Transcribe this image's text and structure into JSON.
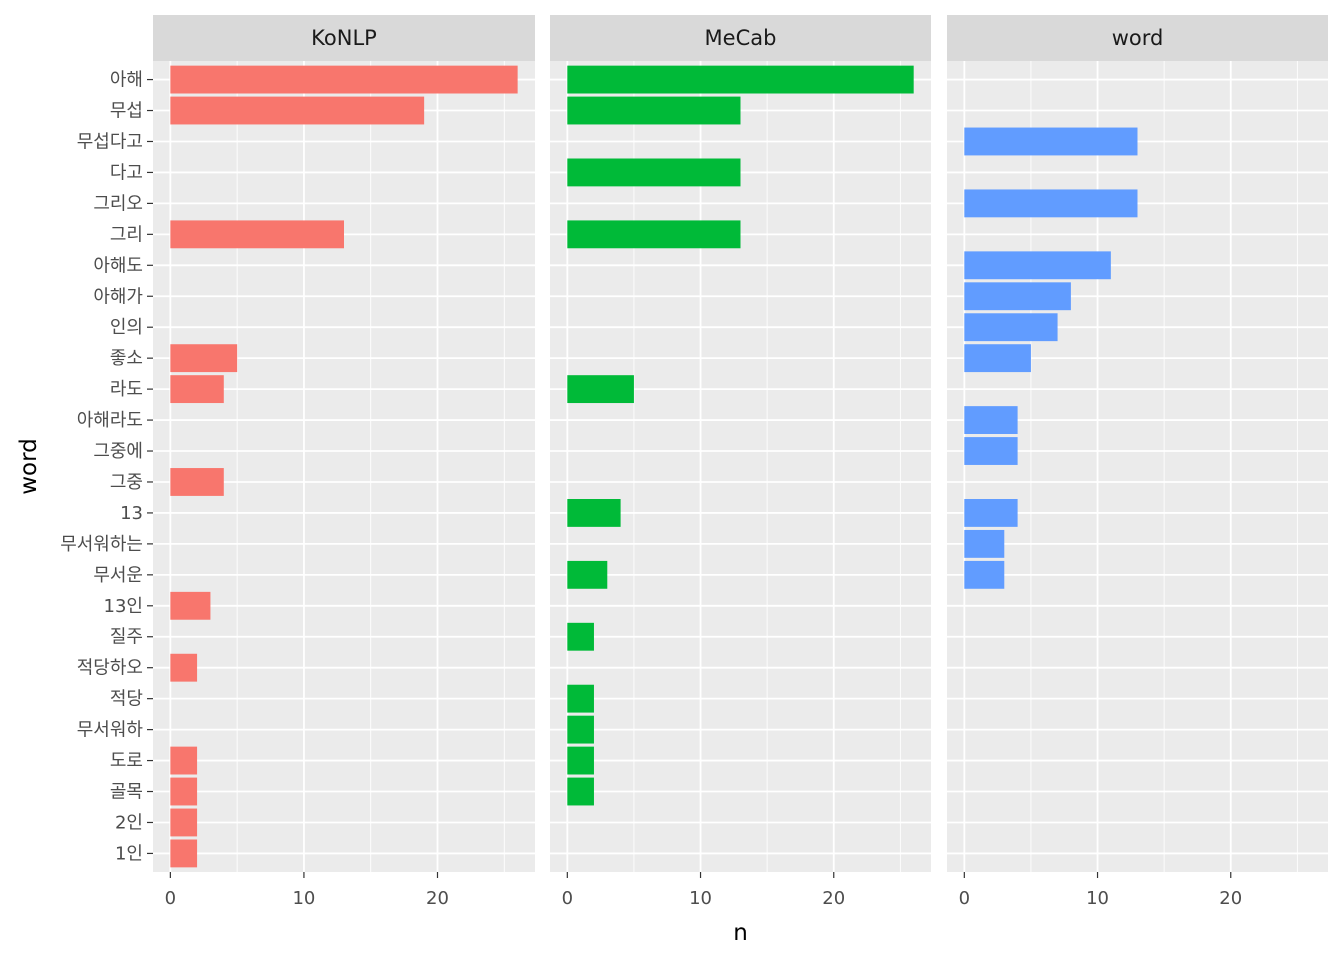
{
  "chart_data": {
    "type": "bar",
    "orientation": "horizontal",
    "faceted": true,
    "xlabel": "n",
    "ylabel": "word",
    "xlim": [
      -1.3,
      27.3
    ],
    "x_ticks": [
      0,
      10,
      20
    ],
    "categories": [
      "아해",
      "무섭",
      "무섭다고",
      "다고",
      "그리오",
      "그리",
      "아해도",
      "아해가",
      "인의",
      "좋소",
      "라도",
      "아해라도",
      "그중에",
      "그중",
      "13",
      "무서워하는",
      "무서운",
      "13인",
      "질주",
      "적당하오",
      "적당",
      "무서워하",
      "도로",
      "골목",
      "2인",
      "1인"
    ],
    "series": [
      {
        "name": "KoNLP",
        "color": "#F8766D",
        "values": [
          26,
          19,
          null,
          null,
          null,
          13,
          null,
          null,
          null,
          5,
          4,
          null,
          null,
          4,
          null,
          null,
          null,
          3,
          null,
          2,
          null,
          null,
          2,
          2,
          2,
          2
        ]
      },
      {
        "name": "MeCab",
        "color": "#00BA38",
        "values": [
          26,
          13,
          null,
          13,
          null,
          13,
          null,
          null,
          null,
          null,
          5,
          null,
          null,
          null,
          4,
          null,
          3,
          null,
          2,
          null,
          2,
          2,
          2,
          2,
          null,
          null
        ]
      },
      {
        "name": "word",
        "color": "#619CFF",
        "values": [
          null,
          null,
          13,
          null,
          13,
          null,
          11,
          8,
          7,
          5,
          null,
          4,
          4,
          null,
          4,
          3,
          3,
          null,
          null,
          null,
          null,
          null,
          null,
          null,
          null,
          null
        ]
      }
    ],
    "legend": "none"
  }
}
